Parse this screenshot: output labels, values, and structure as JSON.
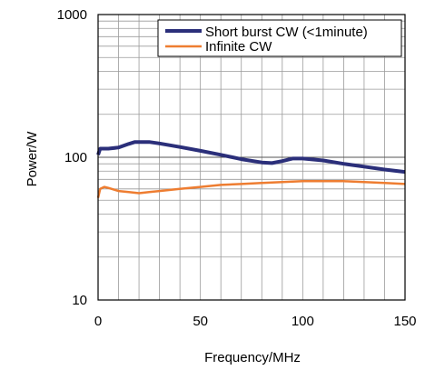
{
  "chart_data": {
    "type": "line",
    "xlabel": "Frequency/MHz",
    "ylabel": "Power/W",
    "xlim": [
      0,
      150
    ],
    "ylim": [
      10,
      1000
    ],
    "yscale": "log",
    "grid": true,
    "legend_position": "top-right",
    "x_ticks": [
      "0",
      "50",
      "100",
      "150"
    ],
    "y_ticks": [
      "10",
      "100",
      "1000"
    ],
    "series": [
      {
        "name": "Short burst CW (<1minute)",
        "color": "#2b2f7a",
        "x": [
          0,
          1,
          5,
          10,
          15,
          18,
          25,
          30,
          40,
          50,
          60,
          70,
          80,
          85,
          90,
          95,
          100,
          110,
          120,
          130,
          140,
          150
        ],
        "y": [
          104,
          115,
          115,
          117,
          124,
          128,
          128,
          125,
          118,
          111,
          104,
          97,
          92,
          91,
          94,
          98,
          98,
          95,
          90,
          86,
          82,
          79
        ]
      },
      {
        "name": "Infinite CW",
        "color": "#ee7d31",
        "x": [
          0,
          1,
          3,
          5,
          10,
          15,
          20,
          25,
          30,
          40,
          50,
          60,
          70,
          80,
          90,
          100,
          110,
          120,
          130,
          140,
          150
        ],
        "y": [
          52,
          60,
          62,
          61,
          58,
          57,
          56,
          57,
          58,
          60,
          62,
          64,
          65,
          66,
          67,
          68,
          68,
          68,
          67,
          66,
          65
        ]
      }
    ]
  }
}
